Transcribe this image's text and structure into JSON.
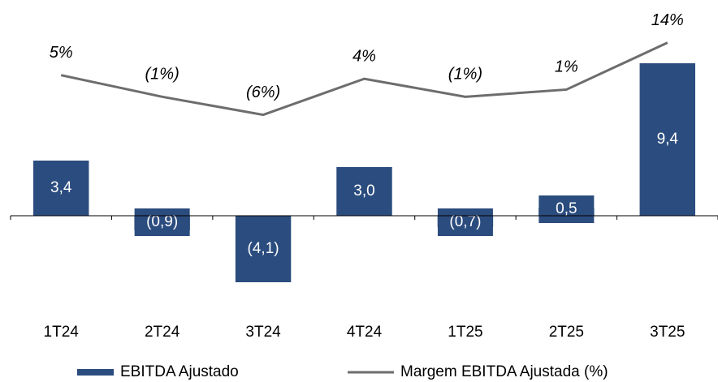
{
  "chart_data": {
    "type": "combo",
    "categories": [
      "1T24",
      "2T24",
      "3T24",
      "4T24",
      "1T25",
      "2T25",
      "3T25"
    ],
    "series": [
      {
        "name": "EBITDA Ajustado",
        "type": "bar",
        "color": "#2b4c7e",
        "values": [
          3.4,
          -0.9,
          -4.1,
          3.0,
          -0.7,
          0.5,
          9.4
        ],
        "value_labels": [
          "3,4",
          "(0,9)",
          "(4,1)",
          "3,0",
          "(0,7)",
          "0,5",
          "9,4"
        ]
      },
      {
        "name": "Margem EBITDA Ajustada (%)",
        "type": "line",
        "axis": "y2",
        "color": "#6d6d6d",
        "values": [
          5,
          -1,
          -6,
          4,
          -1,
          1,
          14
        ],
        "value_labels": [
          "5%",
          "(1%)",
          "(6%)",
          "4%",
          "(1%)",
          "1%",
          "14%"
        ]
      }
    ],
    "ylim": [
      -6,
      12
    ],
    "y2lim": [
      -61,
      20
    ],
    "legend": "bottom"
  }
}
